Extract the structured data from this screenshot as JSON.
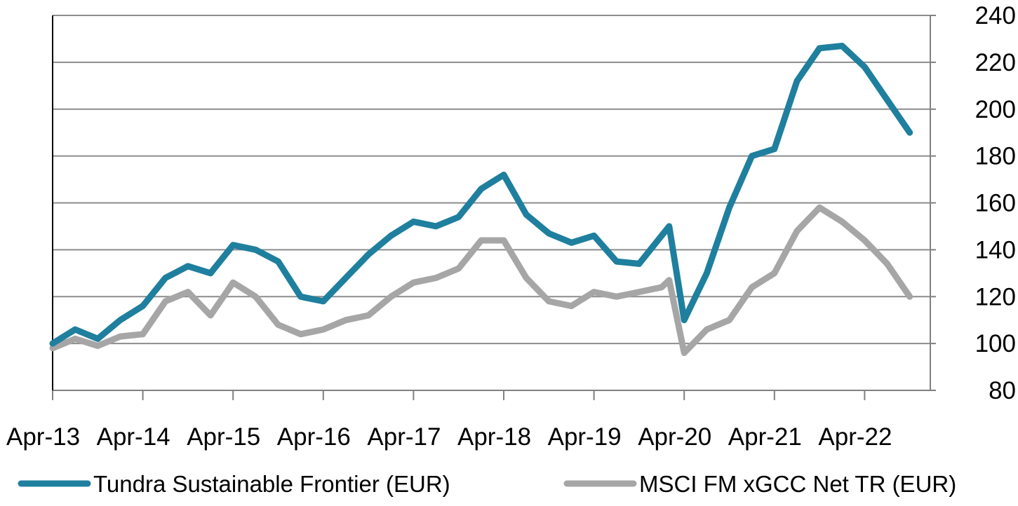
{
  "chart_data": {
    "type": "line",
    "title": "",
    "xlabel": "",
    "ylabel": "",
    "ylim": [
      80,
      240
    ],
    "y_axis_position": "right",
    "yticks": [
      "240",
      "220",
      "200",
      "180",
      "160",
      "140",
      "120",
      "100",
      "80"
    ],
    "xticks": [
      "Apr-13",
      "Apr-14",
      "Apr-15",
      "Apr-16",
      "Apr-17",
      "Apr-18",
      "Apr-19",
      "Apr-20",
      "Apr-21",
      "Apr-22"
    ],
    "grid": true,
    "legend_position": "bottom",
    "x": [
      "2013-04",
      "2013-07",
      "2013-10",
      "2014-01",
      "2014-04",
      "2014-07",
      "2014-10",
      "2015-01",
      "2015-04",
      "2015-07",
      "2015-10",
      "2016-01",
      "2016-04",
      "2016-07",
      "2016-10",
      "2017-01",
      "2017-04",
      "2017-07",
      "2017-10",
      "2018-01",
      "2018-04",
      "2018-07",
      "2018-10",
      "2019-01",
      "2019-04",
      "2019-07",
      "2019-10",
      "2020-01",
      "2020-02",
      "2020-04",
      "2020-07",
      "2020-10",
      "2021-01",
      "2021-04",
      "2021-07",
      "2021-10",
      "2022-01",
      "2022-04",
      "2022-07",
      "2022-10"
    ],
    "series": [
      {
        "name": "Tundra Sustainable Frontier (EUR)",
        "color": "#1f7f9e",
        "values": [
          100,
          106,
          102,
          110,
          116,
          128,
          133,
          130,
          142,
          140,
          135,
          120,
          118,
          128,
          138,
          146,
          152,
          150,
          154,
          166,
          172,
          155,
          147,
          143,
          146,
          135,
          134,
          146,
          150,
          110,
          130,
          158,
          180,
          183,
          212,
          226,
          227,
          218,
          204,
          190
        ]
      },
      {
        "name": "MSCI FM xGCC Net TR (EUR)",
        "color": "#a6a6a6",
        "values": [
          98,
          102,
          99,
          103,
          104,
          118,
          122,
          112,
          126,
          120,
          108,
          104,
          106,
          110,
          112,
          120,
          126,
          128,
          132,
          144,
          144,
          128,
          118,
          116,
          122,
          120,
          122,
          124,
          127,
          96,
          106,
          110,
          124,
          130,
          148,
          158,
          152,
          144,
          134,
          120
        ]
      }
    ]
  }
}
